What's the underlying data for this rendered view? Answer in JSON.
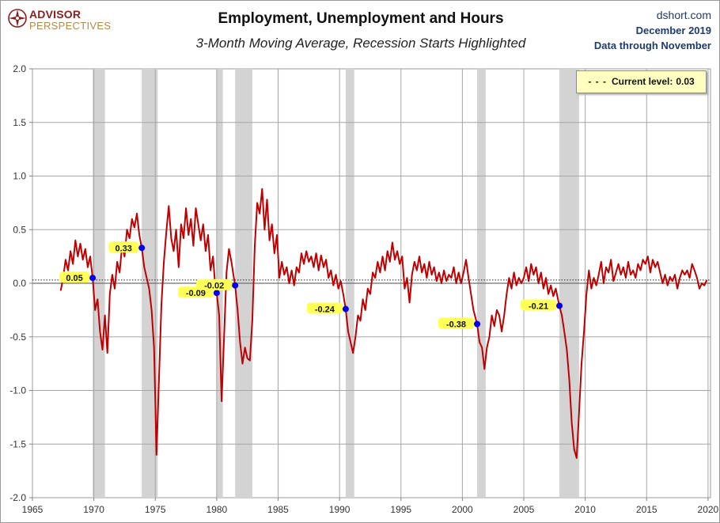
{
  "header": {
    "title": "Employment, Unemployment and Hours",
    "subtitle": "3-Month Moving Average, Recession Starts Highlighted",
    "logo_line1": "ADVISOR",
    "logo_line2": "PERSPECTIVES",
    "source_site": "dshort.com",
    "source_date": "December 2019",
    "source_note": "Data through November"
  },
  "legend": {
    "label": "Current level:",
    "value": "0.03"
  },
  "colors": {
    "line": "#c00000",
    "recession": "#d3d3d3",
    "marker": "#0000ee",
    "callout": "#ffff55",
    "logo": "#8c1d1d"
  },
  "chart_data": {
    "type": "line",
    "title": "Employment, Unemployment and Hours",
    "xlabel": "",
    "ylabel": "",
    "xlim": [
      1965,
      2020.2
    ],
    "ylim": [
      -2.0,
      2.0
    ],
    "x_ticks": [
      1965,
      1970,
      1975,
      1980,
      1985,
      1990,
      1995,
      2000,
      2005,
      2010,
      2015,
      2020
    ],
    "y_ticks": [
      2.0,
      1.5,
      1.0,
      0.5,
      0.0,
      -0.5,
      -1.0,
      -1.5,
      -2.0
    ],
    "y_tick_labels": [
      "2.0",
      "1.5",
      "1.0",
      "0.5",
      "0.0",
      "-0.5",
      "-1.0",
      "-1.5",
      "-2.0"
    ],
    "grid": true,
    "reference_line": 0.03,
    "recessions": [
      [
        1969.9,
        1970.9
      ],
      [
        1973.9,
        1975.2
      ],
      [
        1980.0,
        1980.5
      ],
      [
        1981.5,
        1982.9
      ],
      [
        1990.5,
        1991.2
      ],
      [
        2001.2,
        2001.9
      ],
      [
        2007.9,
        2009.5
      ]
    ],
    "recession_start_markers": [
      {
        "x": 1969.9,
        "y": 0.05,
        "label": "0.05"
      },
      {
        "x": 1973.9,
        "y": 0.33,
        "label": "0.33"
      },
      {
        "x": 1980.0,
        "y": -0.09,
        "label": "-0.09"
      },
      {
        "x": 1981.5,
        "y": -0.02,
        "label": "-0.02"
      },
      {
        "x": 1990.5,
        "y": -0.24,
        "label": "-0.24"
      },
      {
        "x": 2001.2,
        "y": -0.38,
        "label": "-0.38"
      },
      {
        "x": 2007.9,
        "y": -0.21,
        "label": "-0.21"
      }
    ],
    "series": [
      {
        "values": [
          [
            1967.3,
            -0.07
          ],
          [
            1967.5,
            0.05
          ],
          [
            1967.7,
            0.22
          ],
          [
            1967.9,
            0.12
          ],
          [
            1968.1,
            0.3
          ],
          [
            1968.3,
            0.18
          ],
          [
            1968.5,
            0.4
          ],
          [
            1968.7,
            0.25
          ],
          [
            1968.9,
            0.37
          ],
          [
            1969.1,
            0.22
          ],
          [
            1969.3,
            0.32
          ],
          [
            1969.5,
            0.15
          ],
          [
            1969.7,
            0.25
          ],
          [
            1969.9,
            0.05
          ],
          [
            1970.1,
            -0.25
          ],
          [
            1970.3,
            -0.15
          ],
          [
            1970.5,
            -0.45
          ],
          [
            1970.7,
            -0.62
          ],
          [
            1970.9,
            -0.3
          ],
          [
            1971.1,
            -0.65
          ],
          [
            1971.3,
            -0.1
          ],
          [
            1971.5,
            0.08
          ],
          [
            1971.7,
            -0.05
          ],
          [
            1971.9,
            0.2
          ],
          [
            1972.1,
            0.1
          ],
          [
            1972.3,
            0.35
          ],
          [
            1972.5,
            0.25
          ],
          [
            1972.7,
            0.5
          ],
          [
            1972.9,
            0.42
          ],
          [
            1973.1,
            0.6
          ],
          [
            1973.3,
            0.52
          ],
          [
            1973.5,
            0.65
          ],
          [
            1973.7,
            0.45
          ],
          [
            1973.9,
            0.33
          ],
          [
            1974.1,
            0.15
          ],
          [
            1974.3,
            0.05
          ],
          [
            1974.5,
            -0.05
          ],
          [
            1974.7,
            -0.25
          ],
          [
            1974.9,
            -0.6
          ],
          [
            1975.0,
            -1.1
          ],
          [
            1975.1,
            -1.6
          ],
          [
            1975.3,
            -0.9
          ],
          [
            1975.5,
            -0.2
          ],
          [
            1975.7,
            0.2
          ],
          [
            1975.9,
            0.48
          ],
          [
            1976.1,
            0.72
          ],
          [
            1976.3,
            0.42
          ],
          [
            1976.5,
            0.3
          ],
          [
            1976.7,
            0.5
          ],
          [
            1976.9,
            0.15
          ],
          [
            1977.1,
            0.55
          ],
          [
            1977.3,
            0.42
          ],
          [
            1977.5,
            0.7
          ],
          [
            1977.7,
            0.45
          ],
          [
            1977.9,
            0.6
          ],
          [
            1978.1,
            0.35
          ],
          [
            1978.3,
            0.7
          ],
          [
            1978.5,
            0.55
          ],
          [
            1978.7,
            0.4
          ],
          [
            1978.9,
            0.55
          ],
          [
            1979.1,
            0.3
          ],
          [
            1979.3,
            0.45
          ],
          [
            1979.5,
            0.12
          ],
          [
            1979.7,
            0.25
          ],
          [
            1979.9,
            -0.05
          ],
          [
            1980.0,
            -0.09
          ],
          [
            1980.2,
            -0.3
          ],
          [
            1980.4,
            -1.1
          ],
          [
            1980.6,
            -0.5
          ],
          [
            1980.8,
            0.1
          ],
          [
            1981.0,
            0.32
          ],
          [
            1981.2,
            0.2
          ],
          [
            1981.4,
            0.05
          ],
          [
            1981.5,
            -0.02
          ],
          [
            1981.7,
            -0.25
          ],
          [
            1981.9,
            -0.55
          ],
          [
            1982.1,
            -0.75
          ],
          [
            1982.3,
            -0.6
          ],
          [
            1982.5,
            -0.7
          ],
          [
            1982.7,
            -0.72
          ],
          [
            1982.9,
            -0.35
          ],
          [
            1983.1,
            0.35
          ],
          [
            1983.3,
            0.75
          ],
          [
            1983.5,
            0.65
          ],
          [
            1983.7,
            0.88
          ],
          [
            1983.9,
            0.5
          ],
          [
            1984.1,
            0.78
          ],
          [
            1984.3,
            0.4
          ],
          [
            1984.5,
            0.55
          ],
          [
            1984.7,
            0.28
          ],
          [
            1984.9,
            0.45
          ],
          [
            1985.1,
            0.05
          ],
          [
            1985.3,
            0.2
          ],
          [
            1985.5,
            0.08
          ],
          [
            1985.7,
            0.15
          ],
          [
            1985.9,
            0.0
          ],
          [
            1986.1,
            0.12
          ],
          [
            1986.3,
            -0.02
          ],
          [
            1986.5,
            0.15
          ],
          [
            1986.7,
            0.1
          ],
          [
            1986.9,
            0.28
          ],
          [
            1987.1,
            0.18
          ],
          [
            1987.3,
            0.3
          ],
          [
            1987.5,
            0.2
          ],
          [
            1987.7,
            0.25
          ],
          [
            1987.9,
            0.15
          ],
          [
            1988.1,
            0.28
          ],
          [
            1988.3,
            0.12
          ],
          [
            1988.5,
            0.26
          ],
          [
            1988.7,
            0.15
          ],
          [
            1988.9,
            0.22
          ],
          [
            1989.1,
            0.05
          ],
          [
            1989.3,
            0.12
          ],
          [
            1989.5,
            -0.02
          ],
          [
            1989.7,
            0.08
          ],
          [
            1989.9,
            -0.05
          ],
          [
            1990.1,
            0.02
          ],
          [
            1990.3,
            -0.1
          ],
          [
            1990.5,
            -0.24
          ],
          [
            1990.7,
            -0.45
          ],
          [
            1990.9,
            -0.55
          ],
          [
            1991.1,
            -0.65
          ],
          [
            1991.3,
            -0.5
          ],
          [
            1991.5,
            -0.3
          ],
          [
            1991.7,
            -0.35
          ],
          [
            1991.9,
            -0.15
          ],
          [
            1992.1,
            -0.25
          ],
          [
            1992.3,
            -0.05
          ],
          [
            1992.5,
            -0.1
          ],
          [
            1992.7,
            0.1
          ],
          [
            1992.9,
            0.05
          ],
          [
            1993.1,
            0.2
          ],
          [
            1993.3,
            0.1
          ],
          [
            1993.5,
            0.25
          ],
          [
            1993.7,
            0.12
          ],
          [
            1993.9,
            0.3
          ],
          [
            1994.1,
            0.2
          ],
          [
            1994.3,
            0.38
          ],
          [
            1994.5,
            0.22
          ],
          [
            1994.7,
            0.3
          ],
          [
            1994.9,
            0.18
          ],
          [
            1995.1,
            0.25
          ],
          [
            1995.3,
            -0.05
          ],
          [
            1995.5,
            0.05
          ],
          [
            1995.7,
            -0.18
          ],
          [
            1995.9,
            0.08
          ],
          [
            1996.1,
            0.2
          ],
          [
            1996.3,
            0.12
          ],
          [
            1996.5,
            0.25
          ],
          [
            1996.7,
            0.1
          ],
          [
            1996.9,
            0.18
          ],
          [
            1997.1,
            0.05
          ],
          [
            1997.3,
            0.2
          ],
          [
            1997.5,
            0.08
          ],
          [
            1997.7,
            0.15
          ],
          [
            1997.9,
            0.02
          ],
          [
            1998.1,
            0.1
          ],
          [
            1998.3,
            0.0
          ],
          [
            1998.5,
            0.12
          ],
          [
            1998.7,
            0.02
          ],
          [
            1998.9,
            0.08
          ],
          [
            1999.1,
            0.05
          ],
          [
            1999.3,
            0.15
          ],
          [
            1999.5,
            0.0
          ],
          [
            1999.7,
            0.1
          ],
          [
            1999.9,
            0.0
          ],
          [
            2000.1,
            0.1
          ],
          [
            2000.3,
            0.22
          ],
          [
            2000.5,
            0.05
          ],
          [
            2000.7,
            -0.1
          ],
          [
            2000.9,
            -0.25
          ],
          [
            2001.2,
            -0.38
          ],
          [
            2001.4,
            -0.55
          ],
          [
            2001.6,
            -0.6
          ],
          [
            2001.8,
            -0.8
          ],
          [
            2002.0,
            -0.6
          ],
          [
            2002.2,
            -0.5
          ],
          [
            2002.4,
            -0.3
          ],
          [
            2002.6,
            -0.4
          ],
          [
            2002.8,
            -0.25
          ],
          [
            2003.0,
            -0.3
          ],
          [
            2003.2,
            -0.45
          ],
          [
            2003.4,
            -0.3
          ],
          [
            2003.6,
            -0.1
          ],
          [
            2003.8,
            0.05
          ],
          [
            2004.0,
            -0.05
          ],
          [
            2004.2,
            0.1
          ],
          [
            2004.4,
            -0.02
          ],
          [
            2004.6,
            0.05
          ],
          [
            2004.8,
            0.0
          ],
          [
            2005.0,
            0.05
          ],
          [
            2005.2,
            0.15
          ],
          [
            2005.4,
            0.02
          ],
          [
            2005.6,
            0.18
          ],
          [
            2005.8,
            0.08
          ],
          [
            2006.0,
            0.15
          ],
          [
            2006.2,
            0.0
          ],
          [
            2006.4,
            0.1
          ],
          [
            2006.6,
            -0.05
          ],
          [
            2006.8,
            0.05
          ],
          [
            2007.0,
            -0.1
          ],
          [
            2007.2,
            -0.02
          ],
          [
            2007.4,
            -0.12
          ],
          [
            2007.6,
            -0.05
          ],
          [
            2007.9,
            -0.21
          ],
          [
            2008.1,
            -0.3
          ],
          [
            2008.3,
            -0.45
          ],
          [
            2008.5,
            -0.62
          ],
          [
            2008.7,
            -0.9
          ],
          [
            2008.9,
            -1.3
          ],
          [
            2009.1,
            -1.55
          ],
          [
            2009.3,
            -1.63
          ],
          [
            2009.5,
            -1.2
          ],
          [
            2009.7,
            -0.75
          ],
          [
            2009.9,
            -0.45
          ],
          [
            2010.1,
            -0.1
          ],
          [
            2010.3,
            0.12
          ],
          [
            2010.5,
            -0.05
          ],
          [
            2010.7,
            0.05
          ],
          [
            2010.9,
            -0.02
          ],
          [
            2011.1,
            0.08
          ],
          [
            2011.3,
            0.2
          ],
          [
            2011.5,
            0.0
          ],
          [
            2011.7,
            0.15
          ],
          [
            2011.9,
            0.1
          ],
          [
            2012.1,
            0.22
          ],
          [
            2012.3,
            0.02
          ],
          [
            2012.5,
            0.1
          ],
          [
            2012.7,
            0.18
          ],
          [
            2012.9,
            0.08
          ],
          [
            2013.1,
            0.15
          ],
          [
            2013.3,
            0.05
          ],
          [
            2013.5,
            0.2
          ],
          [
            2013.7,
            0.08
          ],
          [
            2013.9,
            0.12
          ],
          [
            2014.1,
            0.05
          ],
          [
            2014.3,
            0.18
          ],
          [
            2014.5,
            0.12
          ],
          [
            2014.7,
            0.22
          ],
          [
            2014.9,
            0.18
          ],
          [
            2015.1,
            0.25
          ],
          [
            2015.3,
            0.1
          ],
          [
            2015.5,
            0.22
          ],
          [
            2015.7,
            0.15
          ],
          [
            2015.9,
            0.2
          ],
          [
            2016.1,
            0.1
          ],
          [
            2016.3,
            0.0
          ],
          [
            2016.5,
            0.08
          ],
          [
            2016.7,
            -0.02
          ],
          [
            2016.9,
            0.06
          ],
          [
            2017.1,
            0.02
          ],
          [
            2017.3,
            0.08
          ],
          [
            2017.5,
            -0.05
          ],
          [
            2017.7,
            0.05
          ],
          [
            2017.9,
            0.12
          ],
          [
            2018.1,
            0.08
          ],
          [
            2018.3,
            0.12
          ],
          [
            2018.5,
            0.05
          ],
          [
            2018.7,
            0.18
          ],
          [
            2018.9,
            0.12
          ],
          [
            2019.1,
            0.05
          ],
          [
            2019.3,
            -0.05
          ],
          [
            2019.5,
            0.0
          ],
          [
            2019.7,
            -0.02
          ],
          [
            2019.9,
            0.03
          ]
        ]
      }
    ]
  }
}
